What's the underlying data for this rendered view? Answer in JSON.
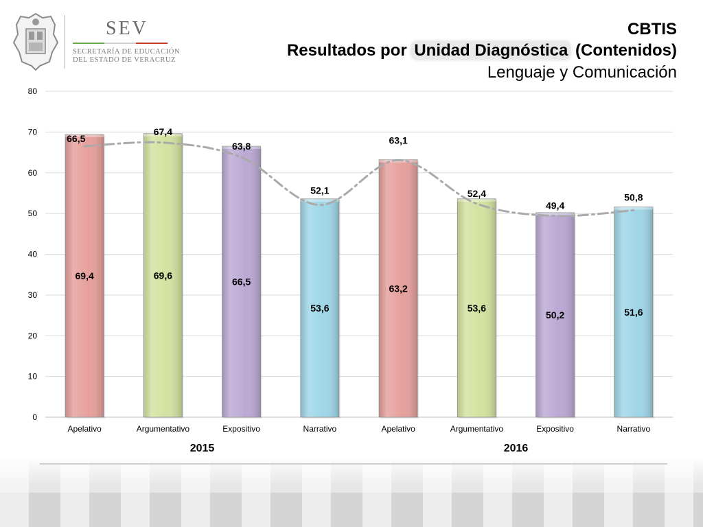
{
  "header": {
    "line1": "CBTIS",
    "line2_pre": "Resultados por ",
    "line2_highlight": "Unidad Diagnóstica",
    "line2_post": " (Contenidos)",
    "line3": "Lenguaje y Comunicación"
  },
  "logo": {
    "acronym": "SEV",
    "line1": "SECRETARÍA DE EDUCACIÓN",
    "line2": "DEL ESTADO DE VERACRUZ"
  },
  "chart_data": {
    "type": "bar",
    "categories": [
      "Apelativo",
      "Argumentativo",
      "Expositivo",
      "Narrativo",
      "Apelativo",
      "Argumentativo",
      "Expositivo",
      "Narrativo"
    ],
    "groups": [
      {
        "label": "2015",
        "start": 0,
        "end": 3
      },
      {
        "label": "2016",
        "start": 4,
        "end": 7
      }
    ],
    "series": [
      {
        "type": "bar",
        "values": [
          69.4,
          69.6,
          66.5,
          53.6,
          63.2,
          53.6,
          50.2,
          51.6
        ],
        "labels": [
          "69,4",
          "69,6",
          "66,5",
          "53,6",
          "63,2",
          "53,6",
          "50,2",
          "51,6"
        ]
      },
      {
        "type": "line",
        "style": "dash-dot",
        "values": [
          66.5,
          67.4,
          63.8,
          52.1,
          63.1,
          52.4,
          49.4,
          50.8
        ],
        "labels": [
          "66,5",
          "67,4",
          "63,8",
          "52,1",
          "63,1",
          "52,4",
          "49,4",
          "50,8"
        ]
      }
    ],
    "bar_colors": [
      "#e6a09c",
      "#d3e2a0",
      "#bba9d4",
      "#9fd6e8",
      "#e6a09c",
      "#d3e2a0",
      "#bba9d4",
      "#9fd6e8"
    ],
    "line_color": "#aaaaaa",
    "ylim": [
      0,
      80
    ],
    "yticks": [
      0,
      10,
      20,
      30,
      40,
      50,
      60,
      70,
      80
    ],
    "grid": true,
    "legend": "none",
    "title": "",
    "xlabel": "",
    "ylabel": ""
  }
}
